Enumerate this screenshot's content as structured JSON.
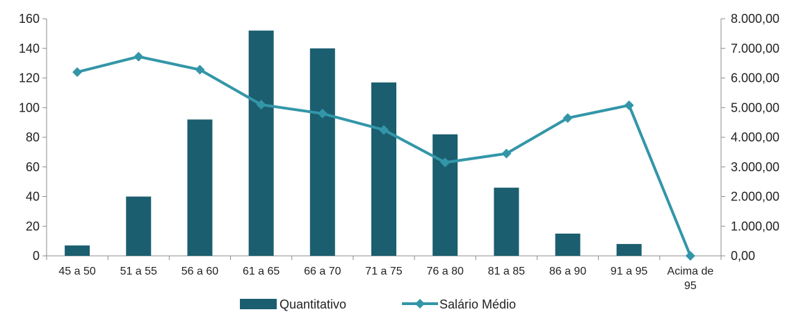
{
  "chart_data": {
    "type": "bar",
    "categories": [
      "45 a 50",
      "51 a 55",
      "56 a 60",
      "61 a 65",
      "66 a 70",
      "71 a 75",
      "76 a 80",
      "81 a 85",
      "86 a 90",
      "91 a 95",
      "Acima de 95"
    ],
    "category_lines": [
      [
        "45 a 50"
      ],
      [
        "51 a 55"
      ],
      [
        "56 a 60"
      ],
      [
        "61 a 65"
      ],
      [
        "66 a 70"
      ],
      [
        "71 a 75"
      ],
      [
        "76 a 80"
      ],
      [
        "81 a 85"
      ],
      [
        "86 a 90"
      ],
      [
        "91 a 95"
      ],
      [
        "Acima de",
        "95"
      ]
    ],
    "series": [
      {
        "name": "Quantitativo",
        "type": "bar",
        "axis": "left",
        "color": "#1b5e6f",
        "values": [
          7,
          40,
          92,
          152,
          140,
          117,
          82,
          46,
          15,
          8,
          0
        ]
      },
      {
        "name": "Salário Médio",
        "type": "line",
        "axis": "right",
        "color": "#3396a8",
        "values": [
          6200,
          6720,
          6280,
          5100,
          4800,
          4250,
          3150,
          3450,
          4650,
          5080,
          0
        ]
      }
    ],
    "y_left": {
      "ylim": [
        0,
        160
      ],
      "ticks": [
        0,
        20,
        40,
        60,
        80,
        100,
        120,
        140,
        160
      ],
      "tick_labels": [
        "0",
        "20",
        "40",
        "60",
        "80",
        "100",
        "120",
        "140",
        "160"
      ]
    },
    "y_right": {
      "ylim": [
        0,
        8000
      ],
      "ticks": [
        0,
        1000,
        2000,
        3000,
        4000,
        5000,
        6000,
        7000,
        8000
      ],
      "tick_labels": [
        "0,00",
        "1.000,00",
        "2.000,00",
        "3.000,00",
        "4.000,00",
        "5.000,00",
        "6.000,00",
        "7.000,00",
        "8.000,00"
      ]
    },
    "grid": false,
    "legend_position": "bottom"
  }
}
